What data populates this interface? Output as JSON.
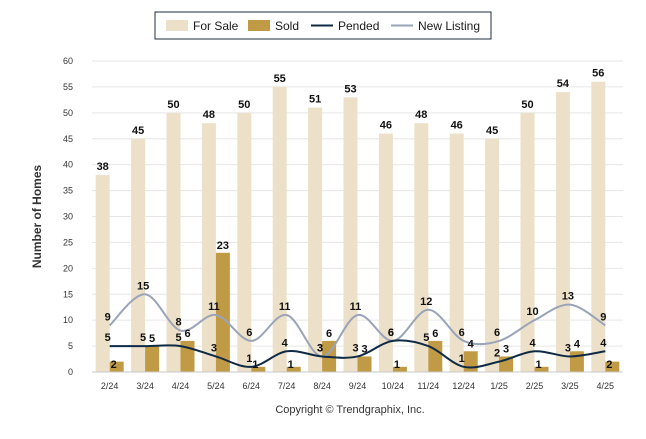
{
  "chart_data": {
    "type": "bar",
    "ylabel": "Number of Homes",
    "xlabel": "",
    "ylim": [
      0,
      60
    ],
    "yticks": [
      0,
      5,
      10,
      15,
      20,
      25,
      30,
      35,
      40,
      45,
      50,
      55,
      60
    ],
    "grid": true,
    "legend_position": "top-center",
    "categories": [
      "2/24",
      "3/24",
      "4/24",
      "5/24",
      "6/24",
      "7/24",
      "8/24",
      "9/24",
      "10/24",
      "11/24",
      "12/24",
      "1/25",
      "2/25",
      "3/25",
      "4/25"
    ],
    "series": [
      {
        "name": "For Sale",
        "kind": "bar",
        "color": "#ede0c8",
        "values": [
          38,
          45,
          50,
          48,
          50,
          55,
          51,
          53,
          46,
          48,
          46,
          45,
          50,
          54,
          56
        ]
      },
      {
        "name": "Sold",
        "kind": "bar",
        "color": "#c19a45",
        "values": [
          2,
          5,
          6,
          23,
          1,
          1,
          6,
          3,
          1,
          6,
          4,
          3,
          1,
          4,
          2
        ]
      },
      {
        "name": "Pended",
        "kind": "line",
        "color": "#0f2a44",
        "values": [
          5,
          5,
          5,
          3,
          1,
          4,
          3,
          3,
          6,
          5,
          1,
          2,
          4,
          3,
          4
        ]
      },
      {
        "name": "New Listing",
        "kind": "line",
        "color": "#9aa4b8",
        "values": [
          9,
          15,
          8,
          11,
          6,
          11,
          3,
          11,
          6,
          12,
          6,
          6,
          10,
          13,
          9
        ]
      }
    ]
  },
  "footer": {
    "copyright": "Copyright © Trendgraphix, Inc."
  }
}
